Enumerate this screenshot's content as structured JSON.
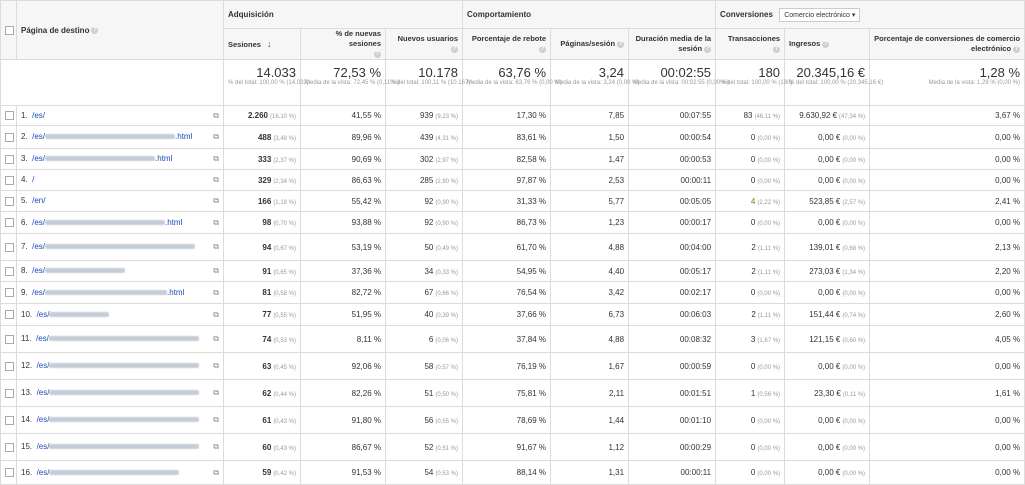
{
  "groups": {
    "page": "Página de destino",
    "acquisition": "Adquisición",
    "behavior": "Comportamiento",
    "conversions": "Conversiones",
    "conversion_select": "Comercio electrónico"
  },
  "columns": {
    "sessions": "Sesiones",
    "new_sessions": "% de nuevas sesiones",
    "new_users": "Nuevos usuarios",
    "bounce": "Porcentaje de rebote",
    "pages_session": "Páginas/sesión",
    "duration": "Duración media de la sesión",
    "transactions": "Transacciones",
    "revenue": "Ingresos",
    "conv_rate": "Porcentaje de conversiones de comercio electrónico"
  },
  "summary": {
    "sessions": {
      "value": "14.033",
      "sub": "% del total: 100,00 % (14.033)"
    },
    "new_sessions": {
      "value": "72,53 %",
      "sub": "Media de la vista: 72,45 % (0,11 %)"
    },
    "new_users": {
      "value": "10.178",
      "sub": "% del total: 100,11 % (10.167)"
    },
    "bounce": {
      "value": "63,76 %",
      "sub": "Media de la vista: 63,76 % (0,00 %)"
    },
    "pages_session": {
      "value": "3,24",
      "sub": "Media de la vista: 3,24 (0,00 %)"
    },
    "duration": {
      "value": "00:02:55",
      "sub": "Media de la vista: 00:02:55 (0,00 %)"
    },
    "transactions": {
      "value": "180",
      "sub": "% del total: 100,00 % (180)"
    },
    "revenue": {
      "value": "20.345,16 €",
      "sub": "% del total: 100,00 % (20.345,16 €)"
    },
    "conv_rate": {
      "value": "1,28 %",
      "sub": "Media de la vista: 1,28 % (0,00 %)"
    }
  },
  "rows": [
    {
      "n": "1.",
      "pre": "/es/",
      "post": "",
      "sessions": "2.260",
      "sp": "(16,10 %)",
      "ns": "41,55 %",
      "nu": "939",
      "nup": "(9,23 %)",
      "br": "17,30 %",
      "ps": "7,85",
      "dur": "00:07:55",
      "tr": "83",
      "trp": "(46,11 %)",
      "rev": "9.630,92 €",
      "revp": "(47,34 %)",
      "cr": "3,67 %"
    },
    {
      "n": "2.",
      "pre": "/es/",
      "post": ".html",
      "sessions": "488",
      "sp": "(3,48 %)",
      "ns": "89,96 %",
      "nu": "439",
      "nup": "(4,31 %)",
      "br": "83,61 %",
      "ps": "1,50",
      "dur": "00:00:54",
      "tr": "0",
      "trp": "(0,00 %)",
      "rev": "0,00 €",
      "revp": "(0,00 %)",
      "cr": "0,00 %"
    },
    {
      "n": "3.",
      "pre": "/es/",
      "post": ".html",
      "sessions": "333",
      "sp": "(2,37 %)",
      "ns": "90,69 %",
      "nu": "302",
      "nup": "(2,97 %)",
      "br": "82,58 %",
      "ps": "1,47",
      "dur": "00:00:53",
      "tr": "0",
      "trp": "(0,00 %)",
      "rev": "0,00 €",
      "revp": "(0,00 %)",
      "cr": "0,00 %"
    },
    {
      "n": "4.",
      "pre": "/",
      "post": "",
      "sessions": "329",
      "sp": "(2,34 %)",
      "ns": "86,63 %",
      "nu": "285",
      "nup": "(2,80 %)",
      "br": "97,87 %",
      "ps": "2,53",
      "dur": "00:00:11",
      "tr": "0",
      "trp": "(0,00 %)",
      "rev": "0,00 €",
      "revp": "(0,00 %)",
      "cr": "0,00 %"
    },
    {
      "n": "5.",
      "pre": "/en/",
      "post": "",
      "sessions": "166",
      "sp": "(1,18 %)",
      "ns": "55,42 %",
      "nu": "92",
      "nup": "(0,90 %)",
      "br": "31,33 %",
      "ps": "5,77",
      "dur": "00:05:05",
      "tr": "4",
      "trp": "(2,22 %)",
      "rev": "523,85 €",
      "revp": "(2,57 %)",
      "cr": "2,41 %"
    },
    {
      "n": "6.",
      "pre": "/es/",
      "post": ".html",
      "sessions": "98",
      "sp": "(0,70 %)",
      "ns": "93,88 %",
      "nu": "92",
      "nup": "(0,90 %)",
      "br": "86,73 %",
      "ps": "1,23",
      "dur": "00:00:17",
      "tr": "0",
      "trp": "(0,00 %)",
      "rev": "0,00 €",
      "revp": "(0,00 %)",
      "cr": "0,00 %"
    },
    {
      "n": "7.",
      "pre": "/es/",
      "post": "",
      "sessions": "94",
      "sp": "(0,67 %)",
      "ns": "53,19 %",
      "nu": "50",
      "nup": "(0,49 %)",
      "br": "61,70 %",
      "ps": "4,88",
      "dur": "00:04:00",
      "tr": "2",
      "trp": "(1,11 %)",
      "rev": "139,01 €",
      "revp": "(0,68 %)",
      "cr": "2,13 %"
    },
    {
      "n": "8.",
      "pre": "/es/",
      "post": "",
      "sessions": "91",
      "sp": "(0,65 %)",
      "ns": "37,36 %",
      "nu": "34",
      "nup": "(0,33 %)",
      "br": "54,95 %",
      "ps": "4,40",
      "dur": "00:05:17",
      "tr": "2",
      "trp": "(1,11 %)",
      "rev": "273,03 €",
      "revp": "(1,34 %)",
      "cr": "2,20 %"
    },
    {
      "n": "9.",
      "pre": "/es/",
      "post": ".html",
      "sessions": "81",
      "sp": "(0,58 %)",
      "ns": "82,72 %",
      "nu": "67",
      "nup": "(0,66 %)",
      "br": "76,54 %",
      "ps": "3,42",
      "dur": "00:02:17",
      "tr": "0",
      "trp": "(0,00 %)",
      "rev": "0,00 €",
      "revp": "(0,00 %)",
      "cr": "0,00 %"
    },
    {
      "n": "10.",
      "pre": "/es/",
      "post": "",
      "sessions": "77",
      "sp": "(0,55 %)",
      "ns": "51,95 %",
      "nu": "40",
      "nup": "(0,39 %)",
      "br": "37,66 %",
      "ps": "6,73",
      "dur": "00:06:03",
      "tr": "2",
      "trp": "(1,11 %)",
      "rev": "151,44 €",
      "revp": "(0,74 %)",
      "cr": "2,60 %"
    },
    {
      "n": "11.",
      "pre": "/es/",
      "post": "",
      "sessions": "74",
      "sp": "(0,53 %)",
      "ns": "8,11 %",
      "nu": "6",
      "nup": "(0,06 %)",
      "br": "37,84 %",
      "ps": "4,88",
      "dur": "00:08:32",
      "tr": "3",
      "trp": "(1,67 %)",
      "rev": "121,15 €",
      "revp": "(0,60 %)",
      "cr": "4,05 %"
    },
    {
      "n": "12.",
      "pre": "/es/",
      "post": "",
      "sessions": "63",
      "sp": "(0,45 %)",
      "ns": "92,06 %",
      "nu": "58",
      "nup": "(0,57 %)",
      "br": "76,19 %",
      "ps": "1,67",
      "dur": "00:00:59",
      "tr": "0",
      "trp": "(0,00 %)",
      "rev": "0,00 €",
      "revp": "(0,00 %)",
      "cr": "0,00 %"
    },
    {
      "n": "13.",
      "pre": "/es/",
      "post": "",
      "sessions": "62",
      "sp": "(0,44 %)",
      "ns": "82,26 %",
      "nu": "51",
      "nup": "(0,50 %)",
      "br": "75,81 %",
      "ps": "2,11",
      "dur": "00:01:51",
      "tr": "1",
      "trp": "(0,56 %)",
      "rev": "23,30 €",
      "revp": "(0,11 %)",
      "cr": "1,61 %"
    },
    {
      "n": "14.",
      "pre": "/es/",
      "post": "",
      "sessions": "61",
      "sp": "(0,43 %)",
      "ns": "91,80 %",
      "nu": "56",
      "nup": "(0,55 %)",
      "br": "78,69 %",
      "ps": "1,44",
      "dur": "00:01:10",
      "tr": "0",
      "trp": "(0,00 %)",
      "rev": "0,00 €",
      "revp": "(0,00 %)",
      "cr": "0,00 %"
    },
    {
      "n": "15.",
      "pre": "/es/",
      "post": "",
      "sessions": "60",
      "sp": "(0,43 %)",
      "ns": "86,67 %",
      "nu": "52",
      "nup": "(0,51 %)",
      "br": "91,67 %",
      "ps": "1,12",
      "dur": "00:00:29",
      "tr": "0",
      "trp": "(0,00 %)",
      "rev": "0,00 €",
      "revp": "(0,00 %)",
      "cr": "0,00 %"
    },
    {
      "n": "16.",
      "pre": "/es/",
      "post": "",
      "sessions": "59",
      "sp": "(0,42 %)",
      "ns": "91,53 %",
      "nu": "54",
      "nup": "(0,53 %)",
      "br": "88,14 %",
      "ps": "1,31",
      "dur": "00:00:11",
      "tr": "0",
      "trp": "(0,00 %)",
      "rev": "0,00 €",
      "revp": "(0,00 %)",
      "cr": "0,00 %"
    }
  ]
}
